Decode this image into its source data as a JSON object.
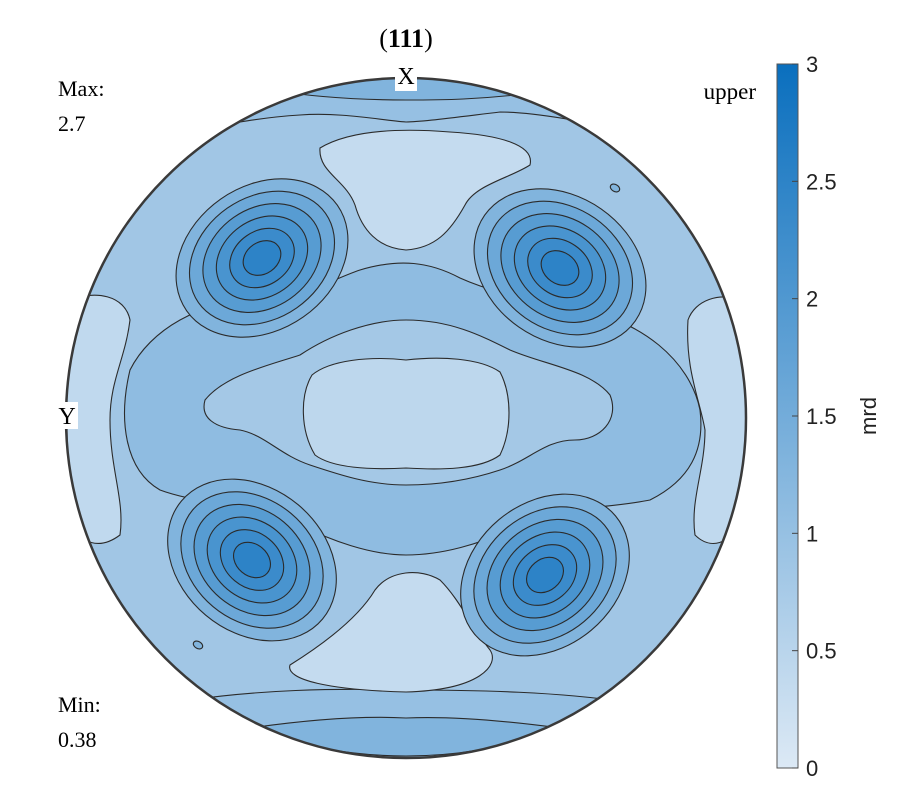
{
  "chart_data": {
    "type": "heatmap",
    "plot_kind": "pole figure (contour)",
    "title": {
      "open": "(",
      "bold": "111",
      "close": ")"
    },
    "axis_labels": {
      "top": "X",
      "left": "Y"
    },
    "hemisphere": "upper",
    "max_label": "Max:",
    "max_value": "2.7",
    "min_label": "Min:",
    "min_value": "0.38",
    "colorbar": {
      "label": "mrd",
      "range": [
        0,
        3
      ],
      "ticks": [
        "0",
        "0.5",
        "1",
        "1.5",
        "2",
        "2.5",
        "3"
      ],
      "tick_values": [
        0,
        0.5,
        1,
        1.5,
        2,
        2.5,
        3
      ],
      "colormap": [
        "#dce9f5",
        "#0a6fbe"
      ]
    },
    "peaks": [
      {
        "name": "upper-left",
        "value": 2.7
      },
      {
        "name": "upper-right",
        "value": 2.6
      },
      {
        "name": "lower-left",
        "value": 2.7
      },
      {
        "name": "lower-right",
        "value": 2.6
      }
    ],
    "contour_levels": [
      0.5,
      1.0,
      1.3,
      1.6,
      1.9,
      2.1,
      2.3,
      2.5
    ]
  }
}
